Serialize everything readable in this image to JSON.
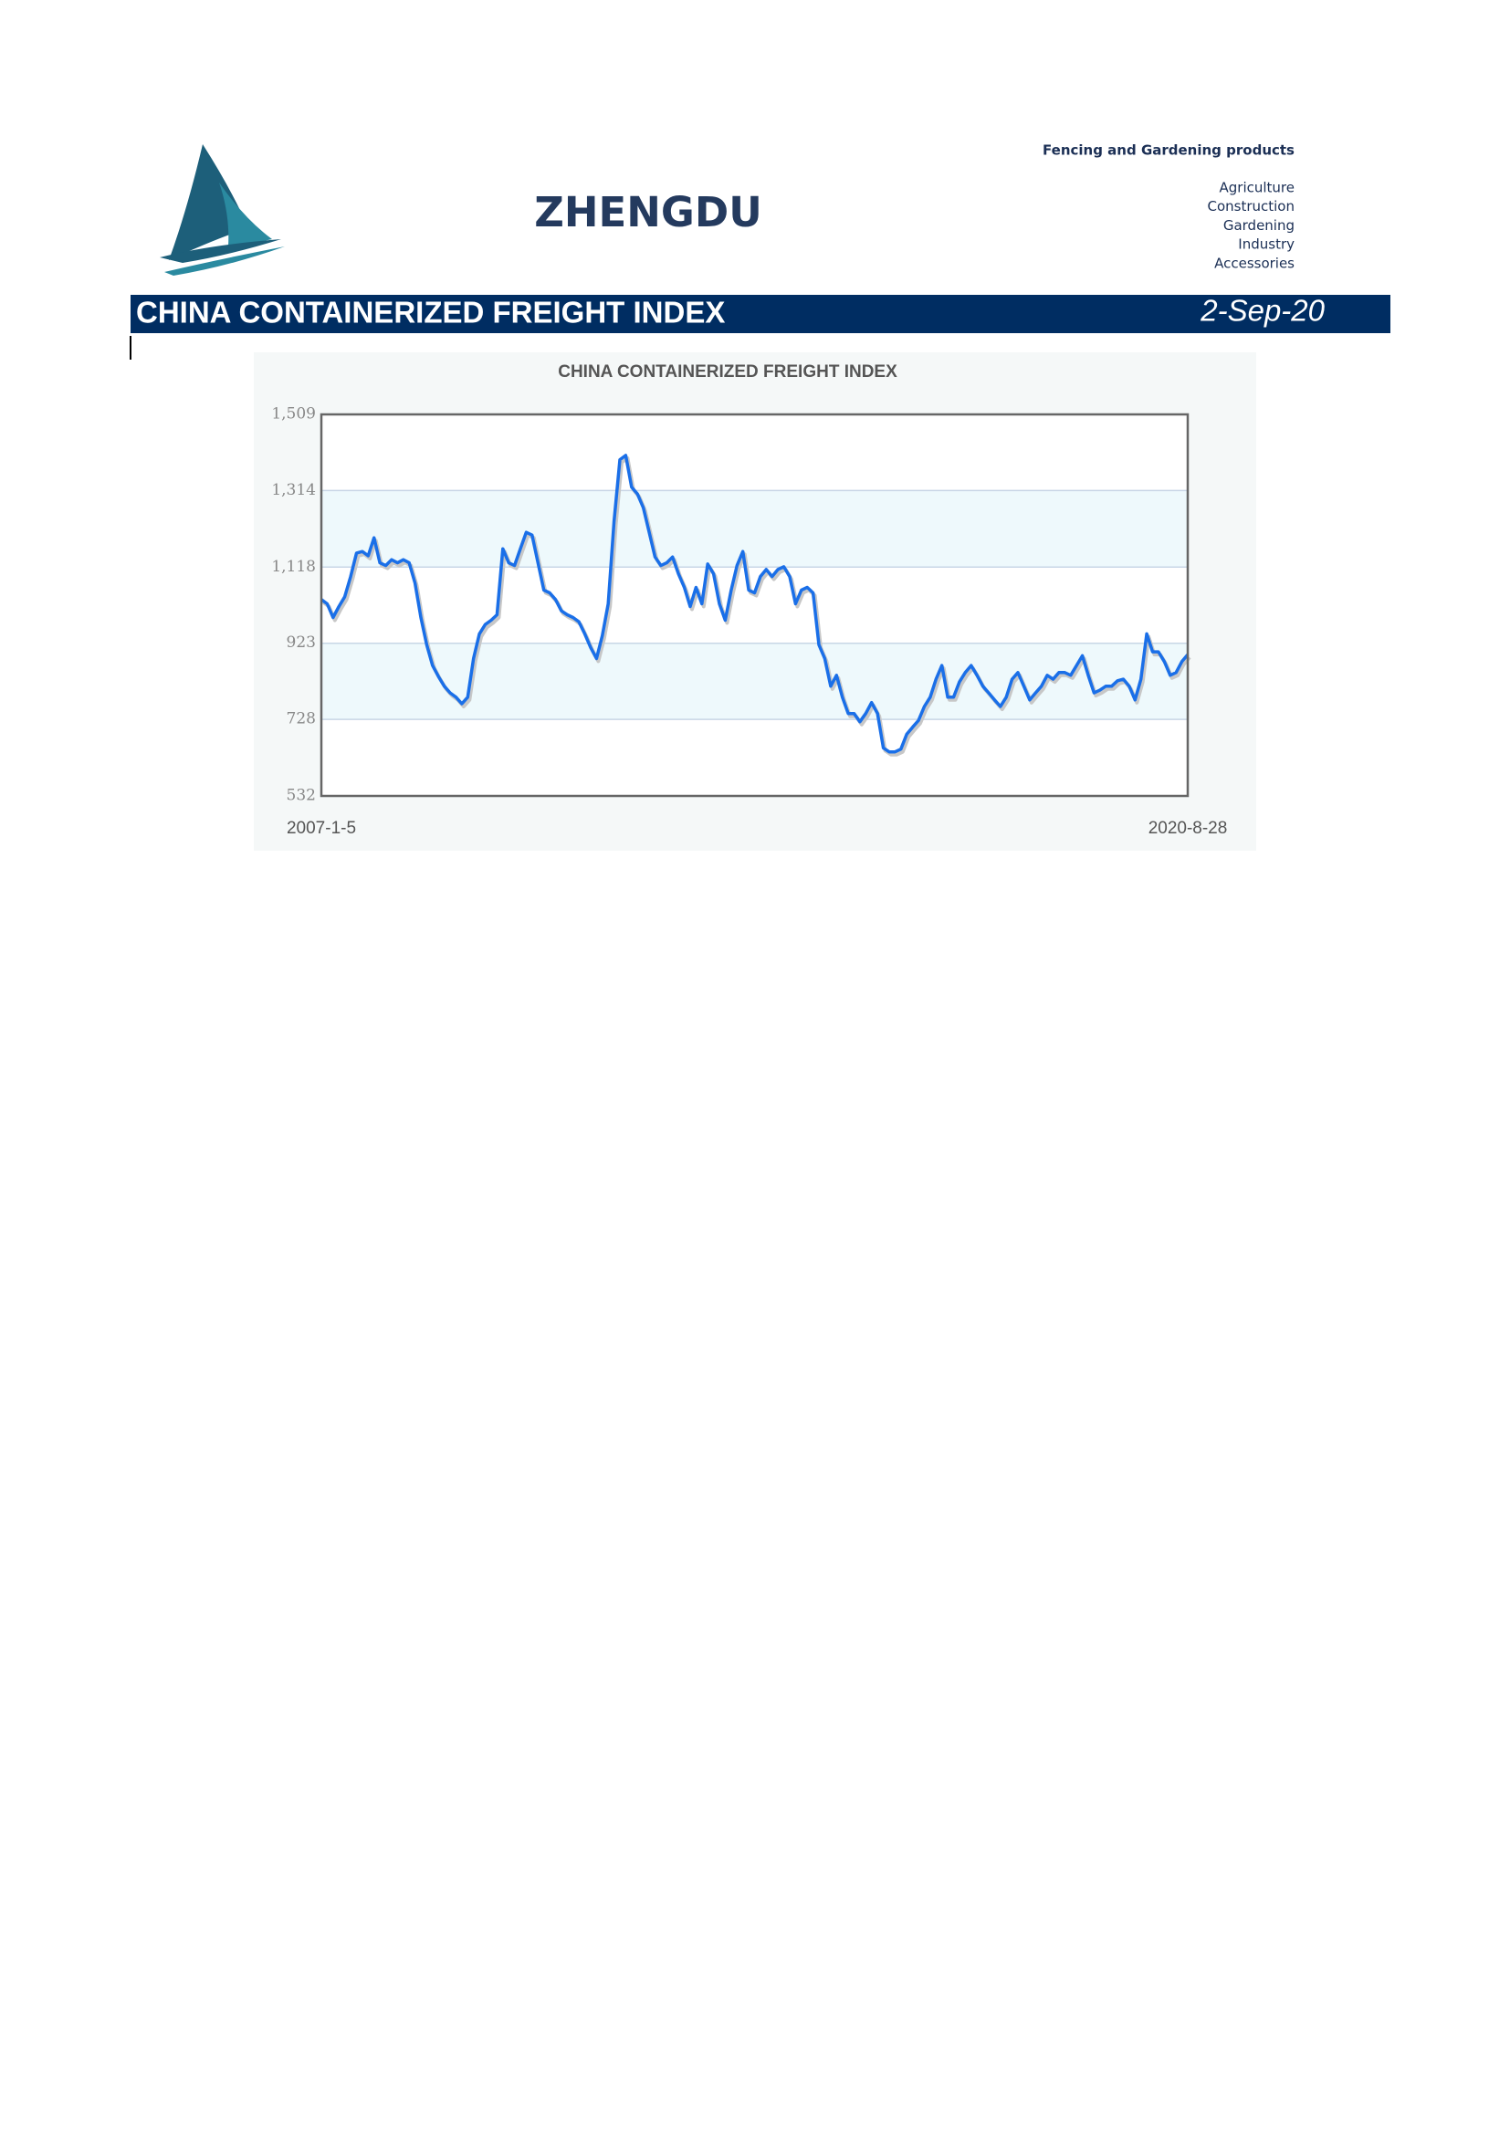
{
  "header": {
    "company": "ZHENGDU",
    "tagline": "Fencing and Gardening products",
    "products": [
      "Agriculture",
      "Construction",
      "Gardening",
      "Industry",
      "Accessories"
    ]
  },
  "banner": {
    "title": "CHINA CONTAINERIZED FREIGHT INDEX",
    "date": "2-Sep-20"
  },
  "chart_data": {
    "type": "line",
    "title": "CHINA CONTAINERIZED FREIGHT INDEX",
    "color": "#1a6fe8",
    "grid": true,
    "categories": [
      "2007-1-5",
      null,
      null,
      null,
      null,
      null,
      null,
      null,
      null,
      null,
      null,
      null,
      null,
      null,
      null,
      null,
      null,
      null,
      null,
      null,
      null,
      null,
      null,
      null,
      null,
      null,
      null,
      null,
      null,
      null,
      null,
      null,
      null,
      null,
      null,
      null,
      null,
      null,
      null,
      null,
      null,
      null,
      null,
      null,
      null,
      null,
      null,
      null,
      null,
      null,
      null,
      null,
      null,
      null,
      null,
      null,
      null,
      null,
      null,
      null,
      null,
      null,
      null,
      null,
      null,
      null,
      null,
      null,
      null,
      null,
      null,
      null,
      null,
      null,
      null,
      null,
      null,
      null,
      null,
      null,
      null,
      null,
      null,
      null,
      null,
      null,
      null,
      null,
      null,
      null,
      null,
      null,
      null,
      null,
      null,
      null,
      null,
      null,
      null,
      null,
      null,
      null,
      null,
      null,
      null,
      null,
      null,
      null,
      null,
      null,
      null,
      null,
      null,
      null,
      null,
      null,
      null,
      null,
      null,
      null,
      null,
      null,
      null,
      null,
      null,
      null,
      null,
      null,
      null,
      null,
      null,
      null,
      null,
      null,
      null,
      null,
      null,
      null,
      null,
      null,
      null,
      null,
      null,
      null,
      null,
      null,
      null,
      null,
      "2020-8-28"
    ],
    "values": [
      1035,
      1024,
      989,
      1017,
      1042,
      1094,
      1154,
      1158,
      1147,
      1193,
      1129,
      1122,
      1137,
      1129,
      1137,
      1129,
      1077,
      989,
      919,
      866,
      838,
      813,
      796,
      785,
      768,
      785,
      884,
      947,
      971,
      982,
      996,
      1165,
      1129,
      1122,
      1165,
      1207,
      1200,
      1129,
      1059,
      1052,
      1035,
      1006,
      996,
      989,
      978,
      947,
      912,
      884,
      943,
      1024,
      1235,
      1393,
      1404,
      1323,
      1305,
      1270,
      1207,
      1144,
      1122,
      1129,
      1144,
      1101,
      1066,
      1017,
      1066,
      1024,
      1126,
      1101,
      1024,
      982,
      1059,
      1122,
      1158,
      1059,
      1052,
      1094,
      1112,
      1094,
      1112,
      1119,
      1094,
      1024,
      1059,
      1066,
      1052,
      919,
      884,
      813,
      841,
      785,
      743,
      743,
      722,
      743,
      771,
      743,
      655,
      645,
      645,
      652,
      690,
      708,
      725,
      761,
      785,
      831,
      866,
      785,
      785,
      824,
      848,
      866,
      841,
      813,
      796,
      778,
      761,
      785,
      831,
      848,
      813,
      778,
      796,
      813,
      841,
      831,
      848,
      848,
      841,
      866,
      891,
      841,
      796,
      803,
      813,
      813,
      827,
      831,
      813,
      778,
      831,
      947,
      901,
      901,
      876,
      841,
      848,
      876,
      894
    ],
    "ylim": [
      532,
      1509
    ],
    "yticks": [
      532,
      728,
      923,
      {
        "value": 1118,
        "label": "1,118"
      },
      {
        "value": 1314,
        "label": "1,314"
      },
      {
        "value": 1509,
        "label": "1,509"
      }
    ]
  }
}
